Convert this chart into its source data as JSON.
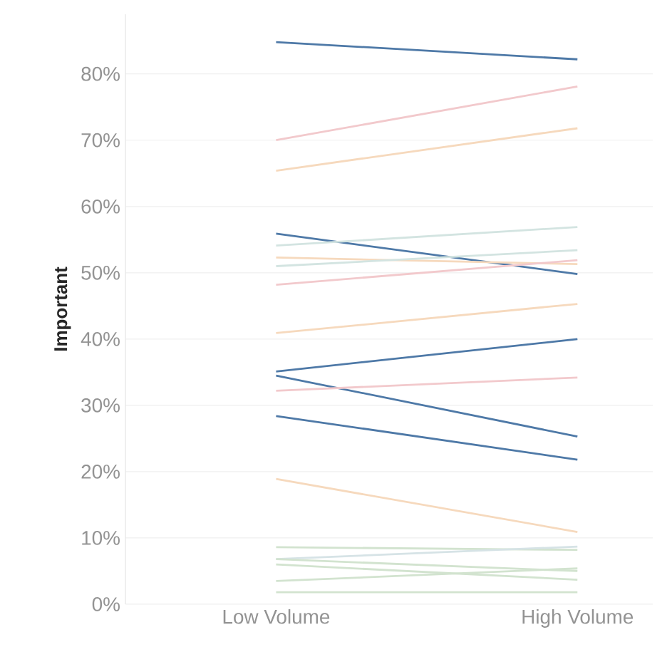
{
  "chart_data": {
    "type": "line",
    "ylabel": "Important",
    "categories": [
      "Low Volume",
      "High Volume"
    ],
    "ylim": [
      0,
      89
    ],
    "yticks": [
      {
        "value": 0,
        "label": "0%"
      },
      {
        "value": 10,
        "label": "10%"
      },
      {
        "value": 20,
        "label": "20%"
      },
      {
        "value": 30,
        "label": "30%"
      },
      {
        "value": 40,
        "label": "40%"
      },
      {
        "value": 50,
        "label": "50%"
      },
      {
        "value": 60,
        "label": "60%"
      },
      {
        "value": 70,
        "label": "70%"
      },
      {
        "value": 80,
        "label": "80%"
      }
    ],
    "grid": "y",
    "series": [
      {
        "color": "#4e79a7",
        "values": [
          84.8,
          82.2
        ]
      },
      {
        "color": "#f2c9cc",
        "values": [
          70.0,
          78.1
        ]
      },
      {
        "color": "#f6d9bd",
        "values": [
          65.4,
          71.8
        ]
      },
      {
        "color": "#4e79a7",
        "values": [
          55.9,
          49.8
        ]
      },
      {
        "color": "#d3e4e1",
        "values": [
          54.1,
          56.9
        ]
      },
      {
        "color": "#f6d9bd",
        "values": [
          52.3,
          51.3
        ]
      },
      {
        "color": "#d3e4e1",
        "values": [
          51.0,
          53.4
        ]
      },
      {
        "color": "#f2c9cc",
        "values": [
          48.2,
          51.9
        ]
      },
      {
        "color": "#f6d9bd",
        "values": [
          40.9,
          45.3
        ]
      },
      {
        "color": "#4e79a7",
        "values": [
          35.1,
          40.0
        ]
      },
      {
        "color": "#4e79a7",
        "values": [
          34.5,
          25.3
        ]
      },
      {
        "color": "#f2c9cc",
        "values": [
          32.2,
          34.2
        ]
      },
      {
        "color": "#4e79a7",
        "values": [
          28.4,
          21.8
        ]
      },
      {
        "color": "#f6d9bd",
        "values": [
          18.9,
          10.9
        ]
      },
      {
        "color": "#d2e3cf",
        "values": [
          8.6,
          8.2
        ]
      },
      {
        "color": "#d6e3e6",
        "values": [
          6.8,
          8.7
        ]
      },
      {
        "color": "#d2e3cf",
        "values": [
          6.8,
          5.0
        ]
      },
      {
        "color": "#d2e3cf",
        "values": [
          6.0,
          3.7
        ]
      },
      {
        "color": "#d2e3cf",
        "values": [
          3.5,
          5.4
        ]
      },
      {
        "color": "#d2e3cf",
        "values": [
          1.8,
          1.8
        ]
      }
    ]
  }
}
